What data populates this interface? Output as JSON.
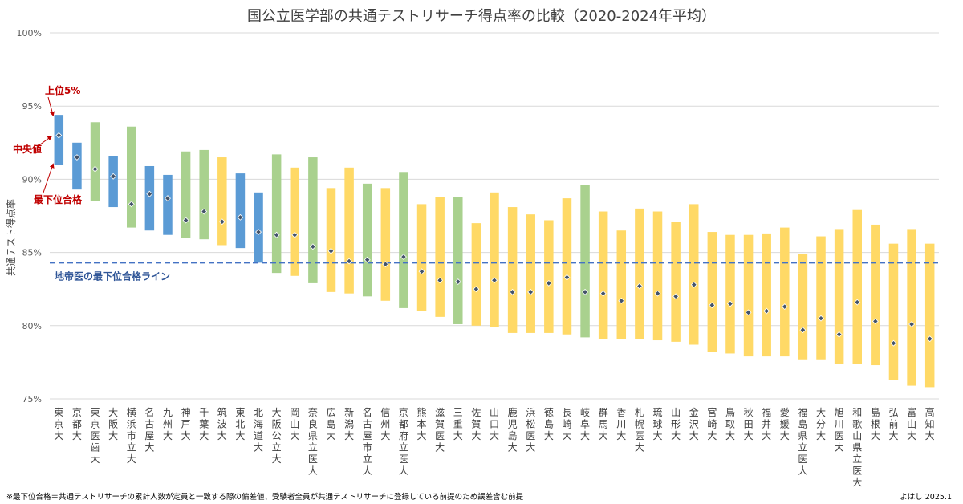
{
  "chart_data": {
    "type": "bar",
    "subtype": "floating-range-with-median-marker",
    "title": "国公立医学部の共通テストリサーチ得点率の比較（2020-2024年平均）",
    "ylabel": "共通テスト得点率",
    "ylim": [
      75,
      100
    ],
    "yticks": [
      "75%",
      "80%",
      "85%",
      "90%",
      "95%",
      "100%"
    ],
    "grid": true,
    "colors": {
      "blue": "#5b9bd5",
      "green": "#a9d18e",
      "yellow": "#ffd966",
      "marker": "#44546a",
      "refline": "#4472c4",
      "annotation": "#c00000"
    },
    "categories": [
      "東京大",
      "京都大",
      "東京医歯大",
      "大阪大",
      "横浜市立大",
      "名古屋大",
      "九州大",
      "神戸大",
      "千葉大",
      "筑波大",
      "東北大",
      "北海道大",
      "大阪公立大",
      "岡山大",
      "奈良県立医大",
      "広島大",
      "新潟大",
      "名古屋市立大",
      "信州大",
      "京都府立医大",
      "熊本大",
      "滋賀医大",
      "三重大",
      "佐賀大",
      "山口大",
      "鹿児島大",
      "浜松医大",
      "徳島大",
      "長崎大",
      "岐阜大",
      "群馬大",
      "香川大",
      "札幌医大",
      "琉球大",
      "山形大",
      "金沢大",
      "宮崎大",
      "鳥取大",
      "秋田大",
      "福井大",
      "愛媛大",
      "福島県立医大",
      "大分大",
      "旭川医大",
      "和歌山県立医大",
      "島根大",
      "弘前大",
      "富山大",
      "高知大"
    ],
    "color_group": [
      "blue",
      "blue",
      "green",
      "blue",
      "green",
      "blue",
      "blue",
      "green",
      "green",
      "yellow",
      "blue",
      "blue",
      "green",
      "yellow",
      "green",
      "yellow",
      "yellow",
      "green",
      "yellow",
      "green",
      "yellow",
      "yellow",
      "green",
      "yellow",
      "yellow",
      "yellow",
      "yellow",
      "yellow",
      "yellow",
      "green",
      "yellow",
      "yellow",
      "yellow",
      "yellow",
      "yellow",
      "yellow",
      "yellow",
      "yellow",
      "yellow",
      "yellow",
      "yellow",
      "yellow",
      "yellow",
      "yellow",
      "yellow",
      "yellow",
      "yellow",
      "yellow",
      "yellow"
    ],
    "series": [
      {
        "name": "上位5%",
        "values": [
          94.4,
          92.5,
          93.9,
          91.6,
          93.6,
          90.9,
          90.3,
          91.9,
          92.0,
          91.5,
          90.4,
          89.1,
          91.7,
          90.8,
          91.5,
          89.4,
          90.8,
          89.7,
          89.4,
          90.5,
          88.3,
          88.8,
          88.8,
          87.0,
          89.1,
          88.1,
          87.6,
          87.2,
          88.7,
          89.6,
          87.8,
          86.5,
          88.0,
          87.8,
          87.1,
          88.3,
          86.4,
          86.2,
          86.2,
          86.3,
          86.7,
          84.9,
          86.1,
          86.6,
          87.9,
          86.9,
          85.6,
          86.6,
          85.6
        ]
      },
      {
        "name": "中央値",
        "values": [
          93.0,
          91.5,
          90.7,
          90.2,
          88.3,
          89.0,
          88.7,
          87.2,
          87.8,
          87.1,
          87.4,
          86.4,
          86.2,
          86.2,
          85.4,
          85.1,
          84.4,
          84.5,
          84.2,
          84.7,
          83.7,
          83.1,
          83.0,
          82.5,
          83.1,
          82.3,
          82.3,
          82.9,
          83.3,
          82.3,
          82.2,
          81.7,
          82.7,
          82.2,
          82.0,
          82.8,
          81.4,
          81.5,
          80.9,
          81.0,
          81.3,
          79.7,
          80.5,
          79.4,
          81.6,
          80.3,
          78.8,
          80.1,
          79.1
        ]
      },
      {
        "name": "最下位合格",
        "values": [
          91.0,
          89.3,
          88.5,
          88.1,
          86.7,
          86.5,
          86.2,
          86.0,
          85.9,
          85.5,
          85.3,
          84.3,
          83.6,
          83.4,
          82.9,
          82.3,
          82.2,
          82.0,
          81.7,
          81.2,
          81.0,
          80.6,
          80.1,
          80.0,
          79.9,
          79.5,
          79.5,
          79.5,
          79.4,
          79.2,
          79.1,
          79.1,
          79.1,
          79.0,
          78.9,
          78.7,
          78.2,
          78.1,
          77.9,
          77.9,
          77.9,
          77.7,
          77.7,
          77.4,
          77.4,
          77.3,
          76.3,
          75.9,
          75.8
        ]
      }
    ],
    "reference_line": {
      "value": 84.3,
      "label": "地帝医の最下位合格ライン"
    },
    "annotations": {
      "top": "上位5%",
      "median": "中央値",
      "bottom": "最下位合格"
    }
  },
  "footnote": "※最下位合格＝共通テストリサーチの累計人数が定員と一致する際の偏差値、受験者全員が共通テストリサーチに登録している前提のため誤差含む前提",
  "credit": "よはし 2025.1"
}
